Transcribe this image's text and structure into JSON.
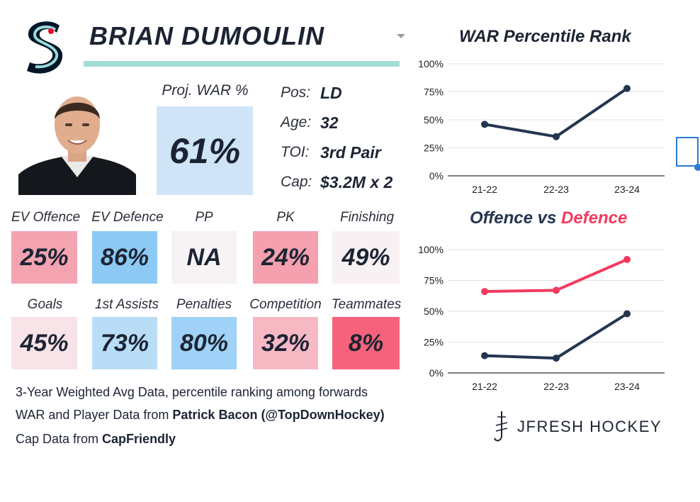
{
  "header": {
    "player_name": "BRIAN DUMOULIN",
    "colors": {
      "underline": "#a3dcd7",
      "logo_navy": "#001628",
      "logo_teal": "#99d9d9",
      "logo_red": "#e9072b"
    }
  },
  "proj_war": {
    "label": "Proj. WAR %",
    "value": "61%"
  },
  "info": [
    {
      "label": "Pos:",
      "value": "LD"
    },
    {
      "label": "Age:",
      "value": "32"
    },
    {
      "label": "TOI:",
      "value": "3rd Pair"
    },
    {
      "label": "Cap:",
      "value": "$3.2M x 2"
    }
  ],
  "stats_row1": [
    {
      "label": "EV Offence",
      "value": "25%",
      "color": "#f4a3b1"
    },
    {
      "label": "EV Defence",
      "value": "86%",
      "color": "#8ccaf4"
    },
    {
      "label": "PP",
      "value": "NA",
      "color": "#f7f2f4"
    },
    {
      "label": "PK",
      "value": "24%",
      "color": "#f4a0ae"
    },
    {
      "label": "Finishing",
      "value": "49%",
      "color": "#f7f1f3"
    }
  ],
  "stats_row2": [
    {
      "label": "Goals",
      "value": "45%",
      "color": "#f7e3e8"
    },
    {
      "label": "1st Assists",
      "value": "73%",
      "color": "#b9ddf7"
    },
    {
      "label": "Penalties",
      "value": "80%",
      "color": "#9fd2f6"
    },
    {
      "label": "Competition",
      "value": "32%",
      "color": "#f6b9c4"
    },
    {
      "label": "Teammates",
      "value": "8%",
      "color": "#f6627b"
    }
  ],
  "footnotes": {
    "line1": "3-Year Weighted Avg Data, percentile ranking among forwards",
    "line2_prefix": "WAR and Player Data from ",
    "line2_bold": "Patrick Bacon (@TopDownHockey)",
    "line3_prefix": "Cap Data from ",
    "line3_bold": "CapFriendly"
  },
  "brand": {
    "name": "JFRESH HOCKEY"
  },
  "chart_data": [
    {
      "type": "line",
      "title": "WAR Percentile Rank",
      "x": [
        "21-22",
        "22-23",
        "23-24"
      ],
      "yticks": [
        "0%",
        "25%",
        "50%",
        "75%",
        "100%"
      ],
      "ylim": [
        0,
        100
      ],
      "grid": true,
      "series": [
        {
          "values": [
            46,
            35,
            78
          ],
          "color": "#243550"
        }
      ]
    },
    {
      "type": "line",
      "title_parts": [
        "Offence",
        " vs ",
        "Defence"
      ],
      "x": [
        "21-22",
        "22-23",
        "23-24"
      ],
      "yticks": [
        "0%",
        "25%",
        "50%",
        "75%",
        "100%"
      ],
      "ylim": [
        0,
        100
      ],
      "grid": true,
      "series": [
        {
          "values": [
            66,
            67,
            92
          ],
          "color": "#f23a5e"
        },
        {
          "values": [
            14,
            12,
            48
          ],
          "color": "#243550"
        }
      ]
    }
  ]
}
